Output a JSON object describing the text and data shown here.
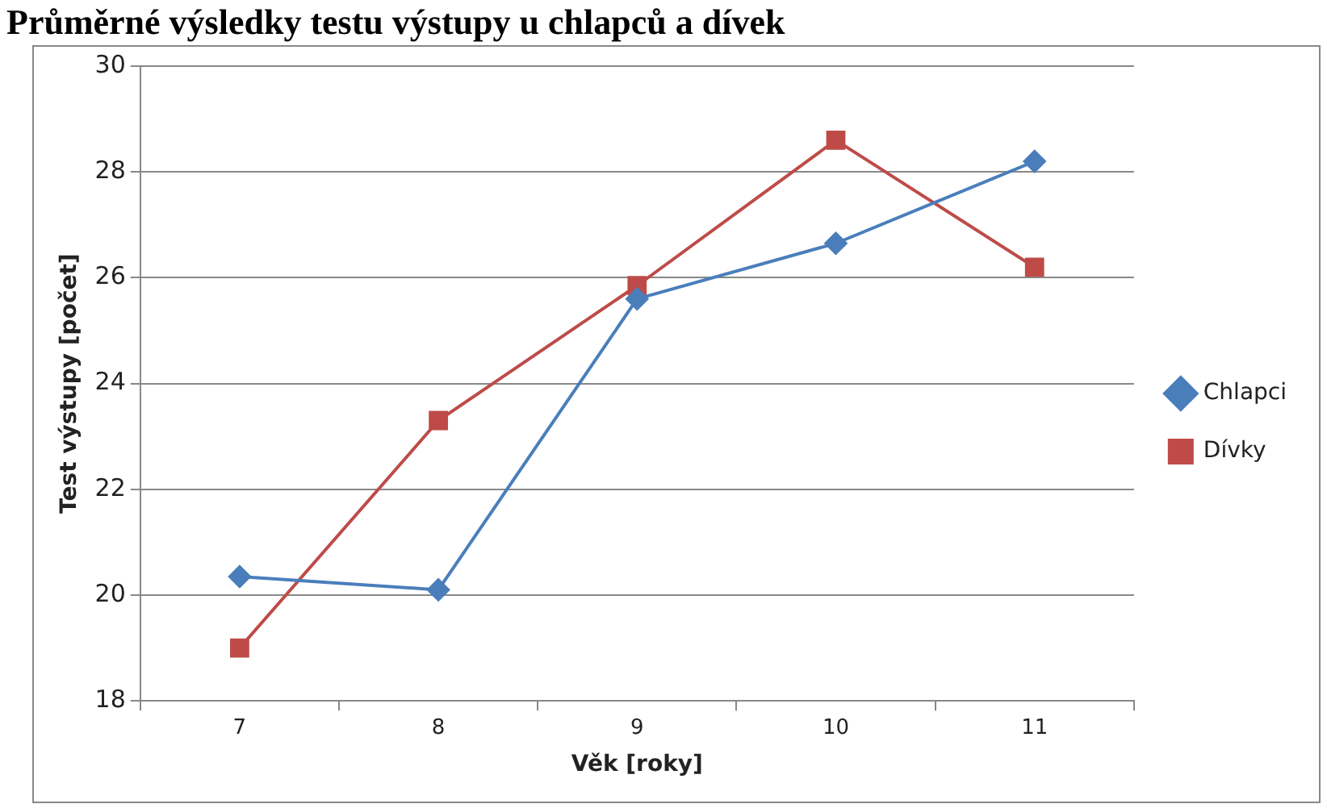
{
  "chart_data": {
    "type": "line",
    "title": "Průměrné výsledky testu výstupy u chlapců a dívek",
    "xlabel": "Věk [roky]",
    "ylabel": "Test výstupy [počet]",
    "categories": [
      "7",
      "8",
      "9",
      "10",
      "11"
    ],
    "series": [
      {
        "name": "Chlapci",
        "color": "#4a7ebb",
        "marker": "diamond",
        "values": [
          20.35,
          20.1,
          25.6,
          26.65,
          28.2
        ]
      },
      {
        "name": "Dívky",
        "color": "#be4b48",
        "marker": "square",
        "values": [
          19.0,
          23.3,
          25.85,
          28.6,
          26.2
        ]
      }
    ],
    "ylim": [
      18,
      30
    ],
    "yticks": [
      18,
      20,
      22,
      24,
      26,
      28,
      30
    ],
    "grid": "y",
    "legend": "right",
    "line_style": "solid"
  }
}
